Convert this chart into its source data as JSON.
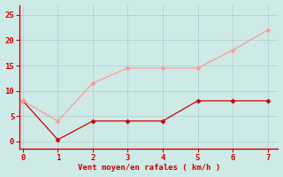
{
  "xlabel": "Vent moyen/en rafales ( km/h )",
  "bg_color": "#ceeae7",
  "grid_color": "#aacccc",
  "line1_x": [
    0,
    1,
    2,
    3,
    4,
    5,
    6,
    7
  ],
  "line1_y": [
    8,
    0.3,
    4,
    4,
    4,
    8,
    8,
    8
  ],
  "line1_color": "#cc0000",
  "line2_x": [
    0,
    1,
    2,
    3,
    4,
    5,
    6,
    7
  ],
  "line2_y": [
    8,
    4,
    11.5,
    14.5,
    14.5,
    14.5,
    18,
    22
  ],
  "line2_color": "#ff9999",
  "xlim": [
    -0.1,
    7.3
  ],
  "ylim": [
    -1.5,
    27
  ],
  "yticks": [
    0,
    5,
    10,
    15,
    20,
    25
  ],
  "xticks": [
    0,
    1,
    2,
    3,
    4,
    5,
    6,
    7
  ],
  "marker": "D",
  "marker_size": 2.5,
  "linewidth": 0.9,
  "font_color": "#cc0000",
  "axis_color": "#cc0000",
  "tick_color": "#cc0000",
  "xlabel_fontsize": 6.5,
  "tick_fontsize": 6.5
}
